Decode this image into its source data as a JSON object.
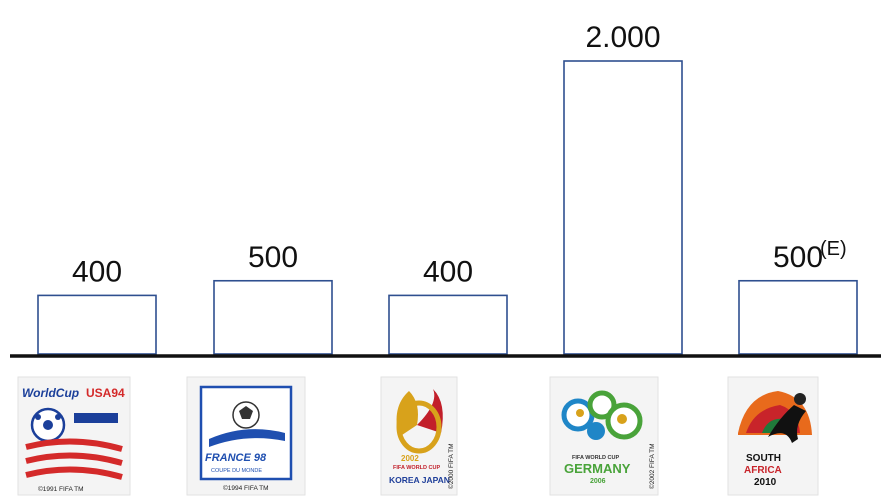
{
  "chart_data": {
    "type": "bar",
    "categories": [
      "USA 1994",
      "France 1998",
      "Korea/Japan 2002",
      "Germany 2006",
      "South Africa 2010"
    ],
    "values": [
      400,
      500,
      400,
      2000,
      500
    ],
    "value_labels": [
      "400",
      "500",
      "400",
      "2.000",
      "500"
    ],
    "estimate_marker": "(E)",
    "estimate_index": 4,
    "title": "",
    "xlabel": "",
    "ylabel": "",
    "ylim": [
      0,
      2000
    ],
    "grid": false,
    "legend": "none"
  },
  "logos": {
    "usa": {
      "title_a": "WorldCup",
      "title_b": "USA94",
      "copyright": "©1991 FIFA TM"
    },
    "france": {
      "title": "FRANCE 98",
      "subtitle": "COUPE DU MONDE",
      "copyright": "©1994 FIFA TM"
    },
    "korea_japan": {
      "year": "2002",
      "event": "FIFA WORLD CUP",
      "hosts": "KOREA JAPAN",
      "copyright": "©2000 FIFA TM"
    },
    "germany": {
      "event": "FIFA WORLD CUP",
      "host": "GERMANY",
      "year": "2006",
      "copyright": "©2002 FIFA TM"
    },
    "south_africa": {
      "host_a": "SOUTH",
      "host_b": "AFRICA",
      "year": "2010"
    }
  },
  "colors": {
    "bar_outline": "#2f4f8f",
    "baseline": "#111111",
    "usa_red": "#d42a2a",
    "usa_blue": "#1b3f9a",
    "france_blue": "#1f4fb0",
    "korea_gold": "#d8a21b",
    "korea_red": "#c21f2a",
    "germany_green": "#49a33a",
    "germany_blue": "#1f86c7",
    "sa_orange": "#e86a1c",
    "sa_red": "#c8242a"
  }
}
